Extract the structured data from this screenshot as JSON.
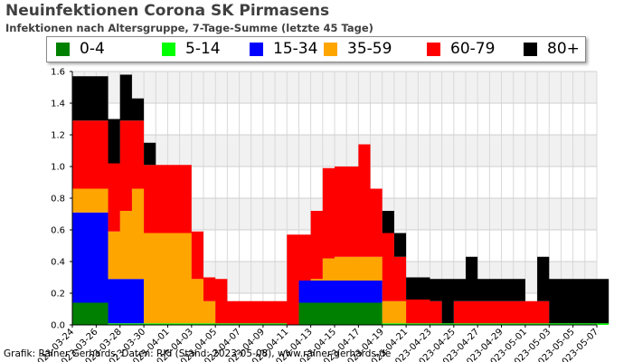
{
  "chart_data": {
    "type": "area",
    "stacked": true,
    "title": "Neuinfektionen Corona SK Pirmasens",
    "subtitle": "Infektionen nach Altersgruppe, 7-Tage-Summe (letzte 45 Tage)",
    "credit": "Grafik: Rainer Gerhards, Daten: RKI (Stand: 2023-05-08), www.rainer-gerhards.de",
    "ylim": [
      0,
      1.6
    ],
    "yticks": [
      "0.0",
      "0.2",
      "0.4",
      "0.6",
      "0.8",
      "1.0",
      "1.2",
      "1.4",
      "1.6"
    ],
    "grid": true,
    "legend_position": "top",
    "xtick_labels": [
      "2023-03-24",
      "2023-03-26",
      "2023-03-28",
      "2023-03-30",
      "2023-04-01",
      "2023-04-03",
      "2023-04-05",
      "2023-04-07",
      "2023-04-09",
      "2023-04-11",
      "2023-04-13",
      "2023-04-15",
      "2023-04-17",
      "2023-04-19",
      "2023-04-21",
      "2023-04-23",
      "2023-04-25",
      "2023-04-27",
      "2023-04-29",
      "2023-05-01",
      "2023-05-03",
      "2023-05-05",
      "2023-05-07"
    ],
    "x": [
      "2023-03-24",
      "2023-03-25",
      "2023-03-26",
      "2023-03-27",
      "2023-03-28",
      "2023-03-29",
      "2023-03-30",
      "2023-03-31",
      "2023-04-01",
      "2023-04-02",
      "2023-04-03",
      "2023-04-04",
      "2023-04-05",
      "2023-04-06",
      "2023-04-07",
      "2023-04-08",
      "2023-04-09",
      "2023-04-10",
      "2023-04-11",
      "2023-04-12",
      "2023-04-13",
      "2023-04-14",
      "2023-04-15",
      "2023-04-16",
      "2023-04-17",
      "2023-04-18",
      "2023-04-19",
      "2023-04-20",
      "2023-04-21",
      "2023-04-22",
      "2023-04-23",
      "2023-04-24",
      "2023-04-25",
      "2023-04-26",
      "2023-04-27",
      "2023-04-28",
      "2023-04-29",
      "2023-04-30",
      "2023-05-01",
      "2023-05-02",
      "2023-05-03",
      "2023-05-04",
      "2023-05-05",
      "2023-05-06",
      "2023-05-07"
    ],
    "series": [
      {
        "name": "0-4",
        "color": "#008000",
        "values": [
          0.14,
          0.14,
          0.14,
          0,
          0,
          0,
          0,
          0,
          0,
          0,
          0,
          0,
          0,
          0,
          0,
          0,
          0,
          0,
          0,
          0.14,
          0.14,
          0.14,
          0.14,
          0.14,
          0.14,
          0.14,
          0,
          0,
          0,
          0,
          0,
          0,
          0,
          0,
          0,
          0,
          0,
          0,
          0,
          0,
          0,
          0,
          0,
          0,
          0
        ]
      },
      {
        "name": "5-14",
        "color": "#00ff00",
        "values": [
          0,
          0,
          0,
          0.01,
          0.01,
          0.01,
          0.01,
          0.01,
          0.01,
          0.01,
          0.01,
          0.01,
          0.01,
          0.01,
          0.01,
          0.01,
          0.01,
          0.01,
          0,
          0,
          0,
          0,
          0,
          0,
          0,
          0,
          0.01,
          0.01,
          0.01,
          0.01,
          0.01,
          0.01,
          0.01,
          0.01,
          0.01,
          0.01,
          0.01,
          0.01,
          0.01,
          0.01,
          0.01,
          0.01,
          0.01,
          0.01,
          0.01
        ]
      },
      {
        "name": "15-34",
        "color": "#0000ff",
        "values": [
          0.57,
          0.57,
          0.57,
          0.28,
          0.28,
          0.28,
          0,
          0,
          0,
          0,
          0,
          0,
          0,
          0,
          0,
          0,
          0,
          0,
          0,
          0.14,
          0.14,
          0.14,
          0.14,
          0.14,
          0.14,
          0.14,
          0,
          0,
          0,
          0,
          0,
          0,
          0,
          0,
          0,
          0,
          0,
          0,
          0,
          0,
          0,
          0,
          0,
          0,
          0
        ]
      },
      {
        "name": "35-59",
        "color": "#ffa500",
        "values": [
          0.15,
          0.15,
          0.15,
          0.3,
          0.43,
          0.57,
          0.57,
          0.57,
          0.57,
          0.57,
          0.28,
          0.14,
          0,
          0,
          0,
          0,
          0,
          0,
          0,
          0,
          0.01,
          0.14,
          0.15,
          0.15,
          0.15,
          0.15,
          0.14,
          0.14,
          0,
          0,
          0,
          0,
          0,
          0,
          0,
          0,
          0,
          0,
          0,
          0,
          0,
          0,
          0,
          0,
          0
        ]
      },
      {
        "name": "60-79",
        "color": "#ff0000",
        "values": [
          0.43,
          0.43,
          0.43,
          0.43,
          0.57,
          0.43,
          0.43,
          0.43,
          0.43,
          0.43,
          0.3,
          0.15,
          0.28,
          0.14,
          0.14,
          0.14,
          0.14,
          0.14,
          0.57,
          0.29,
          0.43,
          0.57,
          0.57,
          0.57,
          0.71,
          0.43,
          0.43,
          0.28,
          0.15,
          0.15,
          0.14,
          0,
          0.14,
          0.14,
          0.14,
          0.14,
          0.14,
          0.14,
          0.14,
          0.14,
          0,
          0,
          0,
          0,
          0
        ]
      },
      {
        "name": "80+",
        "color": "#000000",
        "values": [
          0.28,
          0.28,
          0.28,
          0.28,
          0.29,
          0.14,
          0.14,
          0,
          0,
          0,
          0,
          0,
          0,
          0,
          0,
          0,
          0,
          0,
          0,
          0,
          0,
          0,
          0,
          0,
          0,
          0,
          0.14,
          0.15,
          0.14,
          0.14,
          0.14,
          0.28,
          0.14,
          0.28,
          0.14,
          0.14,
          0.14,
          0.14,
          0,
          0.28,
          0.28,
          0.28,
          0.28,
          0.28,
          0.28
        ]
      }
    ]
  }
}
